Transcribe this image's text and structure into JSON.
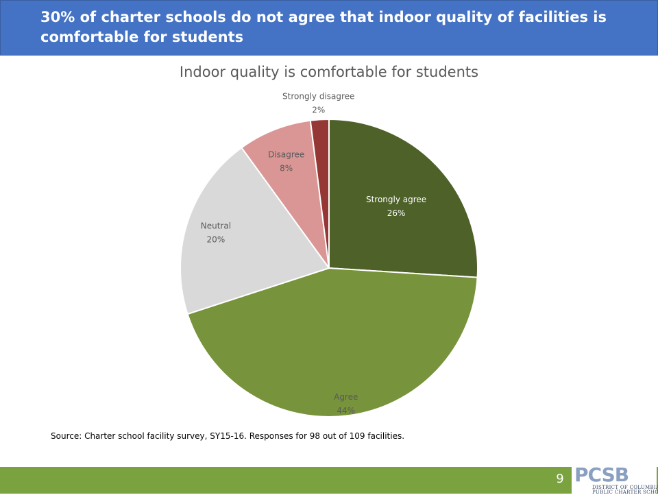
{
  "header": {
    "title": "30% of charter schools do not agree that indoor quality of facilities is comfortable for students"
  },
  "chart_data": {
    "type": "pie",
    "title": "Indoor quality is comfortable for students",
    "slices": [
      {
        "label": "Strongly agree",
        "value": 26,
        "display": "26%",
        "color": "#4e6128",
        "label_color": "#ffffff",
        "bold": true
      },
      {
        "label": "Agree",
        "value": 44,
        "display": "44%",
        "color": "#77933c",
        "label_color": "#595959",
        "bold": false
      },
      {
        "label": "Neutral",
        "value": 20,
        "display": "20%",
        "color": "#d9d9d9",
        "label_color": "#595959",
        "bold": false
      },
      {
        "label": "Disagree",
        "value": 8,
        "display": "8%",
        "color": "#d99694",
        "label_color": "#595959",
        "bold": false
      },
      {
        "label": "Strongly disagree",
        "value": 2,
        "display": "2%",
        "color": "#953735",
        "label_color": "#595959",
        "bold": false
      }
    ],
    "start_angle_deg": 0,
    "direction": "clockwise"
  },
  "source": "Source: Charter school facility survey, SY15-16. Responses for 98 out of 109 facilities.",
  "footer": {
    "page_number": "9",
    "logo_text": "PCSB",
    "logo_line1": "DISTRICT OF COLUMBIA",
    "logo_line2": "PUBLIC CHARTER SCHOOL BOARD"
  }
}
